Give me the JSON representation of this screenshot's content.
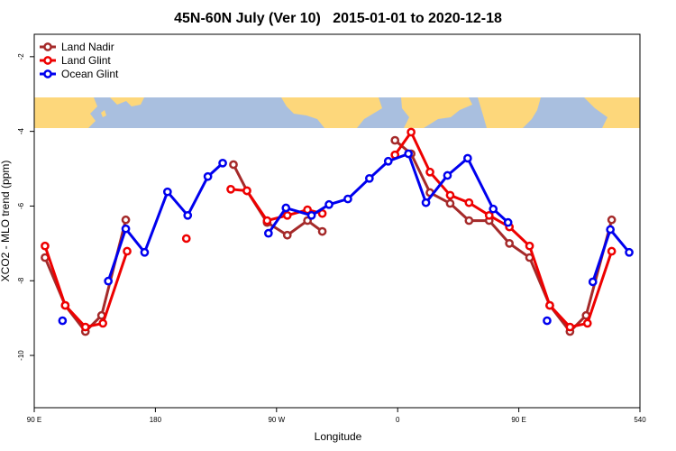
{
  "chart_data": {
    "type": "line",
    "title": "45N-60N July (Ver 10)   2015-01-01 to 2020-12-18",
    "xlabel": "Longitude",
    "ylabel": "XCO2 - MLO trend (ppm)",
    "xlim": [
      90,
      540
    ],
    "ylim": [
      -11.4,
      -1.4
    ],
    "xticks": [
      {
        "value": 90,
        "label": "90 E"
      },
      180,
      {
        "value": 270,
        "label": "90 W"
      },
      {
        "value": 360,
        "label": "0"
      },
      {
        "value": 450,
        "label": "90 E"
      },
      540
    ],
    "yticks": [
      -10,
      -8,
      -6,
      -4,
      -2
    ],
    "legend": "top-left",
    "series": [
      {
        "name": "Land Nadir",
        "color": "#a52a2a",
        "x": [
          98,
          113,
          128,
          140,
          158,
          null,
          238,
          248,
          263,
          278,
          293,
          304,
          null,
          358,
          370,
          384,
          399,
          413,
          428,
          443,
          458,
          473,
          488,
          500,
          519
        ],
        "values": [
          -7.38,
          -8.66,
          -9.36,
          -8.93,
          -6.37,
          null,
          -4.89,
          -5.59,
          -6.44,
          -6.78,
          -6.39,
          -6.68,
          null,
          -4.24,
          -4.6,
          -5.64,
          -5.93,
          -6.39,
          -6.39,
          -7.0,
          -7.38,
          -8.66,
          -9.36,
          -8.93,
          -6.37
        ]
      },
      {
        "name": "Land Glint",
        "color": "#ee0000",
        "x": [
          98,
          113,
          128,
          141,
          159,
          null,
          203,
          null,
          236,
          248,
          263,
          278,
          293,
          304,
          null,
          358,
          370,
          384,
          399,
          413,
          428,
          443,
          458,
          473,
          488,
          501,
          519
        ],
        "values": [
          -7.07,
          -8.66,
          -9.24,
          -9.14,
          -7.21,
          null,
          -6.87,
          null,
          -5.55,
          -5.59,
          -6.39,
          -6.25,
          -6.1,
          -6.2,
          null,
          -4.63,
          -4.02,
          -5.09,
          -5.71,
          -5.91,
          -6.25,
          -6.56,
          -7.07,
          -8.66,
          -9.24,
          -9.14,
          -7.21
        ]
      },
      {
        "name": "Ocean Glint",
        "color": "#0000ee",
        "x": [
          111,
          null,
          145,
          158,
          172,
          189,
          204,
          219,
          230,
          null,
          264,
          277,
          296,
          309,
          323,
          339,
          353,
          368,
          381,
          397,
          412,
          431,
          442,
          null,
          471,
          null,
          505,
          518,
          532
        ],
        "values": [
          -9.07,
          null,
          -8.01,
          -6.61,
          -7.24,
          -5.62,
          -6.25,
          -5.21,
          -4.85,
          null,
          -6.73,
          -6.05,
          -6.25,
          -5.96,
          -5.81,
          -5.26,
          -4.8,
          -4.6,
          -5.91,
          -5.18,
          -4.72,
          -6.08,
          -6.44,
          null,
          -9.07,
          null,
          -8.03,
          -6.63,
          -7.24
        ]
      }
    ]
  }
}
